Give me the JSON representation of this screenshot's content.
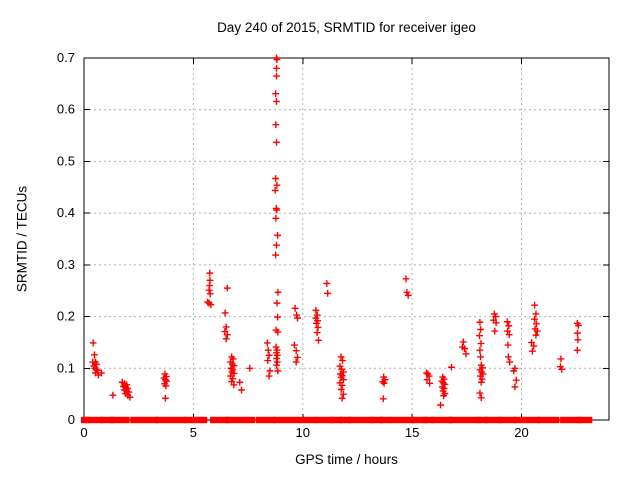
{
  "figure": {
    "background_color": "#ffffff",
    "axis_color": "#000000",
    "grid_color": "#b0b0b0",
    "marker_color": "#ff0000"
  },
  "chart_data": {
    "type": "scatter",
    "title": "Day 240 of 2015, SRMTID for receiver igeo",
    "xlabel": "GPS time / hours",
    "ylabel": "SRMTID / TECUs",
    "xlim": [
      0,
      24
    ],
    "ylim": [
      0,
      0.7
    ],
    "xtick_values": [
      0,
      5,
      10,
      15,
      20
    ],
    "xtick_labels": [
      "0",
      "5",
      "10",
      "15",
      "20"
    ],
    "ytick_values": [
      0,
      0.1,
      0.2,
      0.3,
      0.4,
      0.5,
      0.6,
      0.7
    ],
    "ytick_labels": [
      "0",
      "0.1",
      "0.2",
      "0.3",
      "0.4",
      "0.5",
      "0.6",
      "0.7"
    ],
    "grid": true,
    "legend": "none",
    "marker": "plus",
    "series": [
      {
        "name": "SRMTID",
        "color": "#ff0000",
        "points": [
          [
            0.42,
            0.149
          ],
          [
            0.48,
            0.126
          ],
          [
            0.4,
            0.112
          ],
          [
            0.52,
            0.112
          ],
          [
            0.58,
            0.108
          ],
          [
            0.45,
            0.104
          ],
          [
            0.5,
            0.1
          ],
          [
            0.56,
            0.097
          ],
          [
            0.62,
            0.096
          ],
          [
            0.52,
            0.091
          ],
          [
            0.66,
            0.087
          ],
          [
            0.8,
            0.091
          ],
          [
            1.32,
            0.048
          ],
          [
            1.75,
            0.073
          ],
          [
            1.85,
            0.07
          ],
          [
            1.95,
            0.068
          ],
          [
            1.8,
            0.065
          ],
          [
            1.9,
            0.063
          ],
          [
            2.0,
            0.061
          ],
          [
            1.85,
            0.058
          ],
          [
            1.95,
            0.056
          ],
          [
            2.05,
            0.054
          ],
          [
            1.9,
            0.051
          ],
          [
            2.0,
            0.048
          ],
          [
            2.1,
            0.044
          ],
          [
            3.7,
            0.089
          ],
          [
            3.76,
            0.084
          ],
          [
            3.66,
            0.081
          ],
          [
            3.72,
            0.078
          ],
          [
            3.78,
            0.075
          ],
          [
            3.68,
            0.07
          ],
          [
            3.74,
            0.066
          ],
          [
            3.72,
            0.042
          ],
          [
            5.75,
            0.284
          ],
          [
            5.76,
            0.27
          ],
          [
            5.74,
            0.26
          ],
          [
            5.72,
            0.251
          ],
          [
            5.77,
            0.244
          ],
          [
            5.65,
            0.228
          ],
          [
            5.72,
            0.226
          ],
          [
            5.8,
            0.223
          ],
          [
            6.55,
            0.255
          ],
          [
            6.45,
            0.207
          ],
          [
            6.5,
            0.18
          ],
          [
            6.44,
            0.171
          ],
          [
            6.55,
            0.165
          ],
          [
            6.5,
            0.157
          ],
          [
            6.75,
            0.122
          ],
          [
            6.82,
            0.118
          ],
          [
            6.7,
            0.112
          ],
          [
            6.78,
            0.108
          ],
          [
            6.86,
            0.105
          ],
          [
            6.72,
            0.1
          ],
          [
            6.8,
            0.097
          ],
          [
            6.76,
            0.093
          ],
          [
            6.86,
            0.09
          ],
          [
            6.7,
            0.085
          ],
          [
            6.8,
            0.08
          ],
          [
            6.75,
            0.074
          ],
          [
            6.85,
            0.068
          ],
          [
            7.12,
            0.073
          ],
          [
            7.2,
            0.058
          ],
          [
            7.58,
            0.1
          ],
          [
            8.38,
            0.149
          ],
          [
            8.42,
            0.135
          ],
          [
            8.46,
            0.125
          ],
          [
            8.4,
            0.115
          ],
          [
            8.5,
            0.095
          ],
          [
            8.46,
            0.085
          ],
          [
            8.8,
            0.7
          ],
          [
            8.82,
            0.697
          ],
          [
            8.8,
            0.68
          ],
          [
            8.8,
            0.665
          ],
          [
            8.76,
            0.631
          ],
          [
            8.8,
            0.616
          ],
          [
            8.77,
            0.571
          ],
          [
            8.8,
            0.537
          ],
          [
            8.76,
            0.467
          ],
          [
            8.82,
            0.454
          ],
          [
            8.74,
            0.444
          ],
          [
            8.79,
            0.409
          ],
          [
            8.81,
            0.406
          ],
          [
            8.77,
            0.39
          ],
          [
            8.85,
            0.357
          ],
          [
            8.8,
            0.338
          ],
          [
            8.76,
            0.319
          ],
          [
            8.87,
            0.247
          ],
          [
            8.82,
            0.226
          ],
          [
            8.85,
            0.199
          ],
          [
            8.78,
            0.174
          ],
          [
            8.86,
            0.17
          ],
          [
            8.78,
            0.141
          ],
          [
            8.83,
            0.135
          ],
          [
            8.8,
            0.13
          ],
          [
            8.84,
            0.125
          ],
          [
            8.8,
            0.119
          ],
          [
            8.84,
            0.112
          ],
          [
            8.8,
            0.106
          ],
          [
            8.86,
            0.095
          ],
          [
            9.65,
            0.216
          ],
          [
            9.72,
            0.203
          ],
          [
            9.76,
            0.197
          ],
          [
            9.62,
            0.145
          ],
          [
            9.7,
            0.134
          ],
          [
            9.76,
            0.121
          ],
          [
            9.7,
            0.112
          ],
          [
            10.6,
            0.212
          ],
          [
            10.66,
            0.203
          ],
          [
            10.6,
            0.197
          ],
          [
            10.68,
            0.192
          ],
          [
            10.62,
            0.187
          ],
          [
            10.7,
            0.179
          ],
          [
            10.66,
            0.169
          ],
          [
            10.72,
            0.154
          ],
          [
            11.1,
            0.264
          ],
          [
            11.14,
            0.245
          ],
          [
            11.75,
            0.122
          ],
          [
            11.82,
            0.115
          ],
          [
            11.7,
            0.104
          ],
          [
            11.78,
            0.098
          ],
          [
            11.86,
            0.093
          ],
          [
            11.72,
            0.089
          ],
          [
            11.8,
            0.086
          ],
          [
            11.76,
            0.082
          ],
          [
            11.86,
            0.078
          ],
          [
            11.7,
            0.072
          ],
          [
            11.8,
            0.067
          ],
          [
            11.76,
            0.059
          ],
          [
            11.86,
            0.05
          ],
          [
            11.8,
            0.042
          ],
          [
            13.7,
            0.083
          ],
          [
            13.76,
            0.078
          ],
          [
            13.66,
            0.074
          ],
          [
            13.72,
            0.071
          ],
          [
            13.68,
            0.041
          ],
          [
            14.72,
            0.273
          ],
          [
            14.76,
            0.247
          ],
          [
            14.82,
            0.241
          ],
          [
            15.66,
            0.091
          ],
          [
            15.72,
            0.089
          ],
          [
            15.78,
            0.085
          ],
          [
            15.68,
            0.078
          ],
          [
            15.8,
            0.071
          ],
          [
            16.4,
            0.083
          ],
          [
            16.46,
            0.079
          ],
          [
            16.36,
            0.075
          ],
          [
            16.42,
            0.072
          ],
          [
            16.5,
            0.069
          ],
          [
            16.38,
            0.064
          ],
          [
            16.46,
            0.061
          ],
          [
            16.42,
            0.056
          ],
          [
            16.5,
            0.051
          ],
          [
            16.44,
            0.047
          ],
          [
            16.3,
            0.029
          ],
          [
            16.8,
            0.102
          ],
          [
            17.34,
            0.151
          ],
          [
            17.3,
            0.141
          ],
          [
            17.4,
            0.138
          ],
          [
            17.46,
            0.128
          ],
          [
            18.1,
            0.189
          ],
          [
            18.13,
            0.175
          ],
          [
            18.08,
            0.163
          ],
          [
            18.15,
            0.148
          ],
          [
            18.1,
            0.135
          ],
          [
            18.13,
            0.122
          ],
          [
            18.16,
            0.106
          ],
          [
            18.22,
            0.101
          ],
          [
            18.1,
            0.097
          ],
          [
            18.18,
            0.093
          ],
          [
            18.24,
            0.089
          ],
          [
            18.12,
            0.085
          ],
          [
            18.2,
            0.079
          ],
          [
            18.16,
            0.073
          ],
          [
            18.1,
            0.052
          ],
          [
            18.16,
            0.043
          ],
          [
            18.76,
            0.205
          ],
          [
            18.82,
            0.2
          ],
          [
            18.72,
            0.193
          ],
          [
            18.84,
            0.188
          ],
          [
            18.78,
            0.172
          ],
          [
            19.35,
            0.19
          ],
          [
            19.42,
            0.182
          ],
          [
            19.36,
            0.172
          ],
          [
            19.44,
            0.165
          ],
          [
            19.38,
            0.145
          ],
          [
            19.4,
            0.122
          ],
          [
            19.46,
            0.112
          ],
          [
            19.7,
            0.1
          ],
          [
            19.64,
            0.095
          ],
          [
            19.76,
            0.077
          ],
          [
            19.7,
            0.064
          ],
          [
            20.6,
            0.222
          ],
          [
            20.66,
            0.205
          ],
          [
            20.6,
            0.195
          ],
          [
            20.68,
            0.186
          ],
          [
            20.62,
            0.176
          ],
          [
            20.72,
            0.172
          ],
          [
            20.66,
            0.164
          ],
          [
            20.46,
            0.15
          ],
          [
            20.56,
            0.143
          ],
          [
            20.5,
            0.133
          ],
          [
            21.8,
            0.118
          ],
          [
            21.78,
            0.103
          ],
          [
            21.84,
            0.098
          ],
          [
            22.55,
            0.187
          ],
          [
            22.6,
            0.183
          ],
          [
            22.56,
            0.168
          ],
          [
            22.58,
            0.155
          ],
          [
            22.55,
            0.135
          ]
        ]
      }
    ],
    "zero_band_segments": [
      [
        0.0,
        0.1
      ],
      [
        0.25,
        0.75
      ],
      [
        0.9,
        1.25
      ],
      [
        1.35,
        1.95
      ],
      [
        2.25,
        3.25
      ],
      [
        3.4,
        4.5
      ],
      [
        4.7,
        5.5
      ],
      [
        5.9,
        6.5
      ],
      [
        6.6,
        7.7
      ],
      [
        8.0,
        8.6
      ],
      [
        8.8,
        9.8
      ],
      [
        10.05,
        10.5
      ],
      [
        10.7,
        11.3
      ],
      [
        11.35,
        11.7
      ],
      [
        11.8,
        12.1
      ],
      [
        12.2,
        13.1
      ],
      [
        13.2,
        13.55
      ],
      [
        13.65,
        13.9
      ],
      [
        14.1,
        15.0
      ],
      [
        15.1,
        15.55
      ],
      [
        15.65,
        15.85
      ],
      [
        16.0,
        16.7
      ],
      [
        16.8,
        18.0
      ],
      [
        18.05,
        18.35
      ],
      [
        18.45,
        18.95
      ],
      [
        19.05,
        19.6
      ],
      [
        19.8,
        20.7
      ],
      [
        20.9,
        21.6
      ],
      [
        21.9,
        22.6
      ],
      [
        22.7,
        23.1
      ]
    ]
  }
}
